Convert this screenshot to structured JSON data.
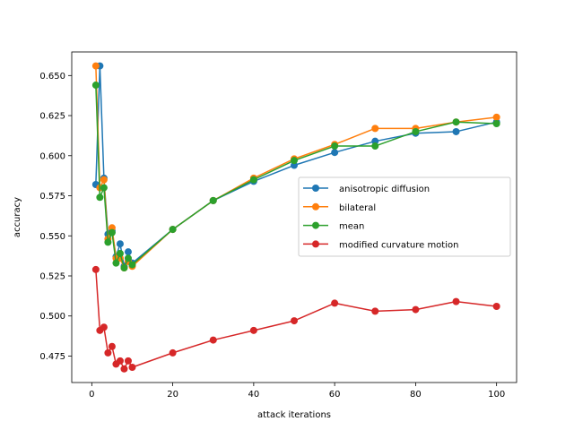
{
  "chart_data": {
    "type": "line",
    "title": "",
    "xlabel": "attack iterations",
    "ylabel": "accuracy",
    "xlim": [
      -4.95,
      104.95
    ],
    "ylim": [
      0.4585,
      0.6647
    ],
    "xticks": [
      0,
      20,
      40,
      60,
      80,
      100
    ],
    "yticks": [
      0.475,
      0.5,
      0.525,
      0.55,
      0.575,
      0.6,
      0.625,
      0.65
    ],
    "ytick_labels": [
      "0.475",
      "0.500",
      "0.525",
      "0.550",
      "0.575",
      "0.600",
      "0.625",
      "0.650"
    ],
    "legend_position": "center-right",
    "x": [
      1,
      2,
      3,
      4,
      5,
      6,
      7,
      8,
      9,
      10,
      20,
      30,
      40,
      50,
      60,
      70,
      80,
      90,
      100
    ],
    "series": [
      {
        "name": "anisotropic diffusion",
        "color": "#1f77b4",
        "values": [
          0.582,
          0.656,
          0.586,
          0.551,
          0.553,
          0.537,
          0.545,
          0.531,
          0.54,
          0.533,
          0.554,
          0.572,
          0.584,
          0.594,
          0.602,
          0.609,
          0.614,
          0.615,
          0.621
        ]
      },
      {
        "name": "bilateral",
        "color": "#ff7f0e",
        "values": [
          0.656,
          0.58,
          0.585,
          0.548,
          0.555,
          0.536,
          0.536,
          0.53,
          0.534,
          0.531,
          0.554,
          0.572,
          0.586,
          0.598,
          0.607,
          0.617,
          0.617,
          0.621,
          0.624
        ]
      },
      {
        "name": "mean",
        "color": "#2ca02c",
        "values": [
          0.644,
          0.574,
          0.58,
          0.546,
          0.552,
          0.533,
          0.539,
          0.53,
          0.536,
          0.532,
          0.554,
          0.572,
          0.585,
          0.597,
          0.606,
          0.606,
          0.615,
          0.621,
          0.62
        ]
      },
      {
        "name": "modified curvature motion",
        "color": "#d62728",
        "values": [
          0.529,
          0.491,
          0.493,
          0.477,
          0.481,
          0.47,
          0.472,
          0.467,
          0.472,
          0.468,
          0.477,
          0.485,
          0.491,
          0.497,
          0.508,
          0.503,
          0.504,
          0.509,
          0.506
        ]
      }
    ]
  }
}
